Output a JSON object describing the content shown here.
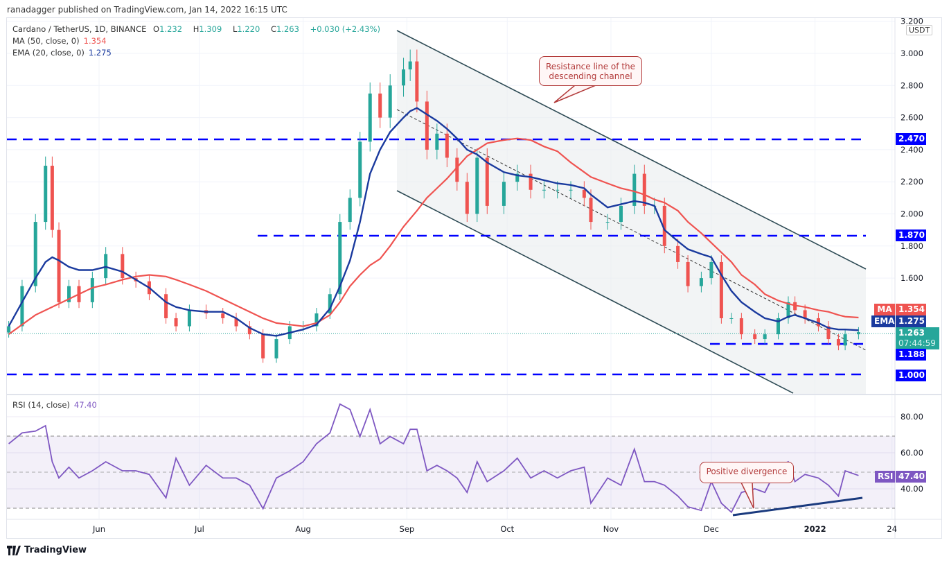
{
  "header": {
    "published": "ranadagger published on TradingView.com, Jan 14, 2022 16:15 UTC"
  },
  "legend": {
    "symbol": "Cardano / TetherUS, 1D, BINANCE",
    "open_label": "O",
    "open": "1.232",
    "high_label": "H",
    "high": "1.309",
    "low_label": "L",
    "low": "1.220",
    "close_label": "C",
    "close": "1.263",
    "change": "+0.030 (+2.43%)",
    "ma_label": "MA (50, close, 0)",
    "ma_value": "1.354",
    "ema_label": "EMA (20, close, 0)",
    "ema_value": "1.275",
    "rsi_label": "RSI (14, close)",
    "rsi_value": "47.40"
  },
  "annotations": {
    "resistance_callout": "Resistance line of the descending channel",
    "divergence_callout": "Positive divergence"
  },
  "price_tags": {
    "ma_name": "MA",
    "ma": "1.354",
    "ema_name": "EMA",
    "ema": "1.275",
    "last": "1.263",
    "countdown": "07:44:59",
    "s1188": "1.188",
    "s1000": "1.000",
    "r1870": "1.870",
    "r2470": "2.470",
    "rsi_name": "RSI",
    "rsi": "47.40"
  },
  "currency": "USDT",
  "brand": "TradingView",
  "colors": {
    "up": "#26a69a",
    "down": "#ef5350",
    "ma": "#ef5350",
    "ema": "#1a3a9e",
    "rsi": "#7e57c2",
    "levels": "#0000ff",
    "channel": "#2e4b55"
  },
  "chart_data": [
    {
      "type": "candlestick",
      "title": "Cardano / TetherUS, 1D, BINANCE",
      "ylim": [
        0.94,
        3.2
      ],
      "y_ticks": [
        "3.200",
        "3.000",
        "2.800",
        "2.600",
        "2.400",
        "2.200",
        "2.000",
        "1.800",
        "1.600"
      ],
      "x_ticks": [
        {
          "label": "Jun",
          "date": "2021-06-01"
        },
        {
          "label": "Jul",
          "date": "2021-07-01"
        },
        {
          "label": "Aug",
          "date": "2021-08-01"
        },
        {
          "label": "Sep",
          "date": "2021-09-01"
        },
        {
          "label": "Oct",
          "date": "2021-10-01"
        },
        {
          "label": "Nov",
          "date": "2021-11-01"
        },
        {
          "label": "Dec",
          "date": "2021-12-01"
        },
        {
          "label": "2022",
          "date": "2022-01-01"
        },
        {
          "label": "24",
          "date": "2022-01-24"
        }
      ],
      "horizontal_levels": [
        2.47,
        1.87,
        1.188,
        1.0
      ],
      "dates": [
        "2021-05-05",
        "2021-05-09",
        "2021-05-13",
        "2021-05-16",
        "2021-05-18",
        "2021-05-20",
        "2021-05-23",
        "2021-05-26",
        "2021-05-30",
        "2021-06-03",
        "2021-06-08",
        "2021-06-12",
        "2021-06-16",
        "2021-06-21",
        "2021-06-24",
        "2021-06-28",
        "2021-07-03",
        "2021-07-08",
        "2021-07-12",
        "2021-07-16",
        "2021-07-20",
        "2021-07-24",
        "2021-07-28",
        "2021-08-01",
        "2021-08-05",
        "2021-08-09",
        "2021-08-12",
        "2021-08-15",
        "2021-08-18",
        "2021-08-21",
        "2021-08-24",
        "2021-08-27",
        "2021-08-31",
        "2021-09-02",
        "2021-09-04",
        "2021-09-07",
        "2021-09-10",
        "2021-09-13",
        "2021-09-16",
        "2021-09-19",
        "2021-09-22",
        "2021-09-25",
        "2021-09-30",
        "2021-10-04",
        "2021-10-08",
        "2021-10-12",
        "2021-10-16",
        "2021-10-20",
        "2021-10-24",
        "2021-10-26",
        "2021-10-31",
        "2021-11-04",
        "2021-11-08",
        "2021-11-11",
        "2021-11-14",
        "2021-11-17",
        "2021-11-21",
        "2021-11-24",
        "2021-11-28",
        "2021-12-01",
        "2021-12-04",
        "2021-12-07",
        "2021-12-10",
        "2021-12-14",
        "2021-12-17",
        "2021-12-21",
        "2021-12-24",
        "2021-12-26",
        "2021-12-29",
        "2022-01-02",
        "2022-01-05",
        "2022-01-08",
        "2022-01-10",
        "2022-01-14"
      ],
      "close": [
        1.3,
        1.55,
        1.95,
        2.3,
        1.9,
        1.45,
        1.55,
        1.45,
        1.6,
        1.75,
        1.6,
        1.58,
        1.5,
        1.35,
        1.3,
        1.4,
        1.38,
        1.35,
        1.3,
        1.25,
        1.1,
        1.22,
        1.3,
        1.3,
        1.38,
        1.5,
        1.95,
        2.1,
        2.45,
        2.75,
        2.6,
        2.8,
        2.9,
        2.95,
        2.7,
        2.4,
        2.5,
        2.35,
        2.2,
        2.0,
        2.35,
        2.05,
        2.2,
        2.25,
        2.15,
        2.15,
        2.15,
        2.15,
        2.1,
        1.95,
        1.95,
        2.05,
        2.25,
        2.05,
        2.05,
        1.8,
        1.7,
        1.55,
        1.6,
        1.7,
        1.35,
        1.35,
        1.25,
        1.22,
        1.25,
        1.35,
        1.45,
        1.4,
        1.35,
        1.3,
        1.22,
        1.18,
        1.25,
        1.263
      ],
      "series": [
        {
          "name": "MA (50, close, 0)",
          "values": [
            1.25,
            1.31,
            1.37,
            1.4,
            1.42,
            1.44,
            1.47,
            1.5,
            1.54,
            1.56,
            1.59,
            1.61,
            1.62,
            1.61,
            1.59,
            1.56,
            1.52,
            1.47,
            1.43,
            1.39,
            1.35,
            1.32,
            1.31,
            1.3,
            1.32,
            1.37,
            1.45,
            1.55,
            1.62,
            1.68,
            1.72,
            1.8,
            1.92,
            1.97,
            2.02,
            2.1,
            2.16,
            2.22,
            2.29,
            2.36,
            2.4,
            2.44,
            2.46,
            2.47,
            2.46,
            2.42,
            2.39,
            2.32,
            2.26,
            2.23,
            2.19,
            2.16,
            2.14,
            2.12,
            2.09,
            2.07,
            2.02,
            1.95,
            1.88,
            1.82,
            1.76,
            1.7,
            1.62,
            1.56,
            1.5,
            1.46,
            1.44,
            1.43,
            1.42,
            1.4,
            1.39,
            1.37,
            1.36,
            1.354
          ]
        },
        {
          "name": "EMA (20, close, 0)",
          "values": [
            1.3,
            1.45,
            1.6,
            1.7,
            1.73,
            1.71,
            1.67,
            1.65,
            1.65,
            1.67,
            1.64,
            1.59,
            1.54,
            1.45,
            1.42,
            1.4,
            1.39,
            1.39,
            1.35,
            1.29,
            1.25,
            1.24,
            1.26,
            1.28,
            1.31,
            1.41,
            1.55,
            1.71,
            1.95,
            2.25,
            2.4,
            2.51,
            2.6,
            2.64,
            2.66,
            2.62,
            2.58,
            2.53,
            2.47,
            2.4,
            2.37,
            2.32,
            2.26,
            2.24,
            2.23,
            2.21,
            2.19,
            2.18,
            2.16,
            2.12,
            2.04,
            2.06,
            2.08,
            2.07,
            2.05,
            1.9,
            1.83,
            1.78,
            1.75,
            1.73,
            1.62,
            1.52,
            1.45,
            1.39,
            1.35,
            1.33,
            1.36,
            1.37,
            1.35,
            1.32,
            1.29,
            1.28,
            1.28,
            1.275
          ]
        }
      ]
    },
    {
      "type": "line",
      "title": "RSI (14, close)",
      "ylim": [
        25,
        92
      ],
      "y_ticks": [
        "80.00",
        "60.00",
        "40.00"
      ],
      "band": [
        30,
        70
      ],
      "midline": 50,
      "series": [
        {
          "name": "RSI (14, close)",
          "values": [
            65,
            71,
            72,
            75,
            55,
            46,
            52,
            46,
            50,
            55,
            50,
            50,
            48,
            35,
            57,
            42,
            53,
            46,
            46,
            42,
            29,
            46,
            50,
            55,
            65,
            71,
            87,
            84,
            69,
            84,
            65,
            69,
            65,
            73,
            73,
            50,
            53,
            50,
            46,
            38,
            55,
            44,
            50,
            57,
            46,
            50,
            46,
            50,
            52,
            32,
            46,
            42,
            62,
            44,
            44,
            42,
            36,
            30,
            28,
            44,
            32,
            27,
            38,
            40,
            38,
            53,
            55,
            44,
            48,
            46,
            42,
            36,
            50,
            47.4
          ]
        }
      ]
    }
  ]
}
